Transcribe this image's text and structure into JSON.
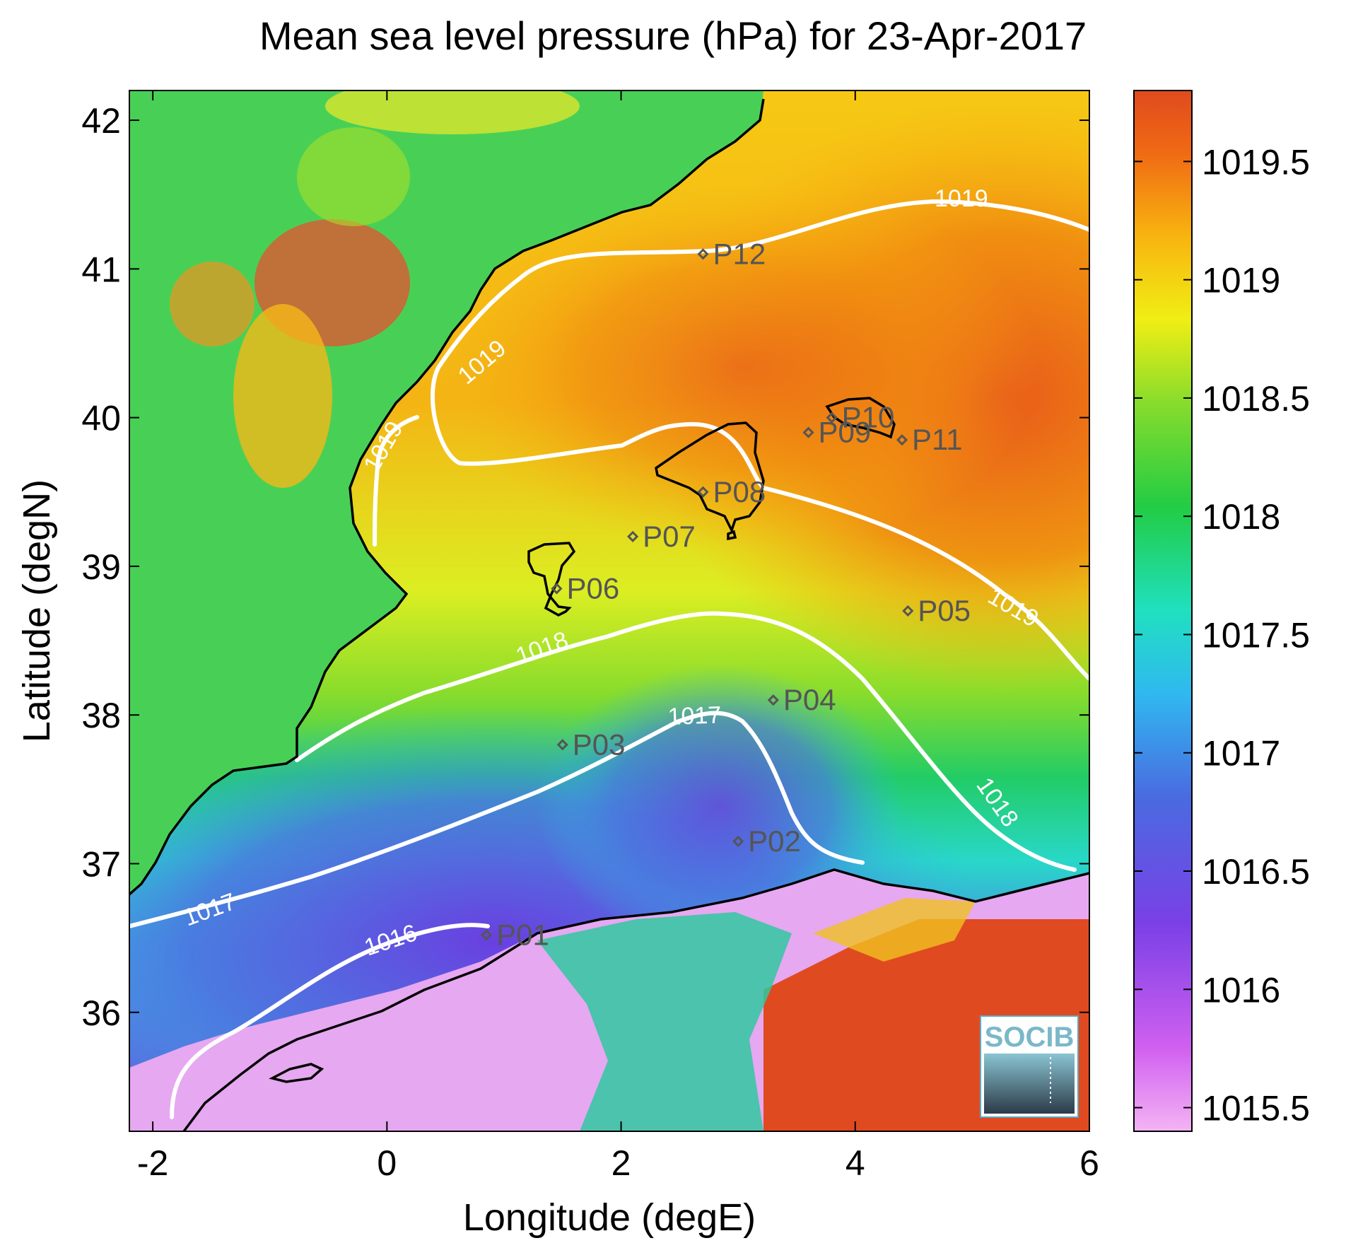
{
  "title": "Mean sea level pressure (hPa) for 23-Apr-2017",
  "x_axis_label": "Longitude (degE)",
  "y_axis_label": "Latitude (degN)",
  "x_ticks": [
    "-2",
    "0",
    "2",
    "4",
    "6"
  ],
  "y_ticks": [
    "36",
    "37",
    "38",
    "39",
    "40",
    "41",
    "42"
  ],
  "colorbar_ticks": [
    "1015.5",
    "1016",
    "1016.5",
    "1017",
    "1017.5",
    "1018",
    "1018.5",
    "1019",
    "1019.5"
  ],
  "contour_labels": [
    "1016",
    "1017",
    "1017",
    "1018",
    "1018",
    "1019",
    "1019",
    "1019",
    "1019"
  ],
  "stations": [
    "P01",
    "P02",
    "P03",
    "P04",
    "P05",
    "P06",
    "P07",
    "P08",
    "P09",
    "P10",
    "P11",
    "P12"
  ],
  "logo_text": "SOCIB",
  "colors": {
    "sea_high": "#e8501e",
    "sea_mid": "#22cc44",
    "sea_low": "#7a40e6",
    "land_low": "#f0a8f0",
    "contour": "#ffffff",
    "coastline": "#000000",
    "station": "#555555"
  },
  "chart_data": {
    "type": "heatmap",
    "title": "Mean sea level pressure (hPa) for 23-Apr-2017",
    "xlabel": "Longitude (degE)",
    "ylabel": "Latitude (degN)",
    "xlim": [
      -2.2,
      6
    ],
    "ylim": [
      35.2,
      42.2
    ],
    "colorbar_range": [
      1015.4,
      1019.8
    ],
    "units": "hPa",
    "contour_levels": [
      1016,
      1017,
      1018,
      1019
    ],
    "stations": [
      {
        "name": "P01",
        "lon": 0.85,
        "lat": 36.52
      },
      {
        "name": "P02",
        "lon": 3.0,
        "lat": 37.15
      },
      {
        "name": "P03",
        "lon": 1.5,
        "lat": 37.8
      },
      {
        "name": "P04",
        "lon": 3.3,
        "lat": 38.1
      },
      {
        "name": "P05",
        "lon": 4.45,
        "lat": 38.7
      },
      {
        "name": "P06",
        "lon": 1.45,
        "lat": 38.85
      },
      {
        "name": "P07",
        "lon": 2.1,
        "lat": 39.2
      },
      {
        "name": "P08",
        "lon": 2.7,
        "lat": 39.5
      },
      {
        "name": "P09",
        "lon": 3.6,
        "lat": 39.9
      },
      {
        "name": "P10",
        "lon": 3.8,
        "lat": 40.0
      },
      {
        "name": "P11",
        "lon": 4.4,
        "lat": 39.85
      },
      {
        "name": "P12",
        "lon": 2.7,
        "lat": 41.1
      }
    ]
  }
}
